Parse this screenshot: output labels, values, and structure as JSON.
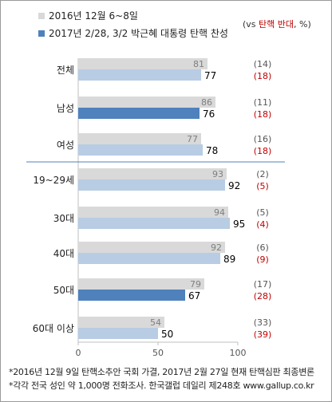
{
  "legend": {
    "series_a": "2016년 12월 6~8일",
    "series_b": "2017년 2/28, 3/2 박근혜 대통령 탄핵 찬성"
  },
  "unit_note": {
    "prefix": "(vs ",
    "highlight": "탄핵 반대",
    "suffix": ", %)"
  },
  "footnotes": [
    "*2016년 12월 9일 탄핵소추안 국회 가결, 2017년 2월 27일 현재 탄핵심판 최종변론",
    "*각각 전국 성인 약 1,000명 전화조사. 한국갤럽 데일리 제248호 www.gallup.co.kr"
  ],
  "colors": {
    "series_a": "#d9d9d9",
    "series_b": "#b8cce4",
    "series_b_highlight": "#4f81bd",
    "oppose_a": "#555555",
    "oppose_b": "#c00000",
    "divider": "#4f81bd"
  },
  "chart_data": {
    "type": "bar",
    "orientation": "horizontal",
    "categories": [
      "전체",
      "남성",
      "여성",
      "19~29세",
      "30대",
      "40대",
      "50대",
      "60대 이상"
    ],
    "series": [
      {
        "name": "2016년 12월 6~8일",
        "values": [
          81,
          86,
          77,
          93,
          94,
          92,
          79,
          54
        ]
      },
      {
        "name": "2017년 2/28, 3/2 박근혜 대통령 탄핵 찬성",
        "values": [
          77,
          76,
          78,
          92,
          95,
          89,
          67,
          50
        ]
      }
    ],
    "oppose": {
      "series_a": [
        "(14)",
        "(11)",
        "(16)",
        "(2)",
        "(5)",
        "(6)",
        "(17)",
        "(33)"
      ],
      "series_b": [
        "(18)",
        "(18)",
        "(18)",
        "(5)",
        "(4)",
        "(9)",
        "(28)",
        "(39)"
      ]
    },
    "highlighted_categories": [
      "남성",
      "50대"
    ],
    "group_divider_after": "여성",
    "xlim": [
      0,
      100
    ],
    "xticks": [
      0,
      50,
      100
    ],
    "grid": false,
    "legend_position": "top-left"
  }
}
